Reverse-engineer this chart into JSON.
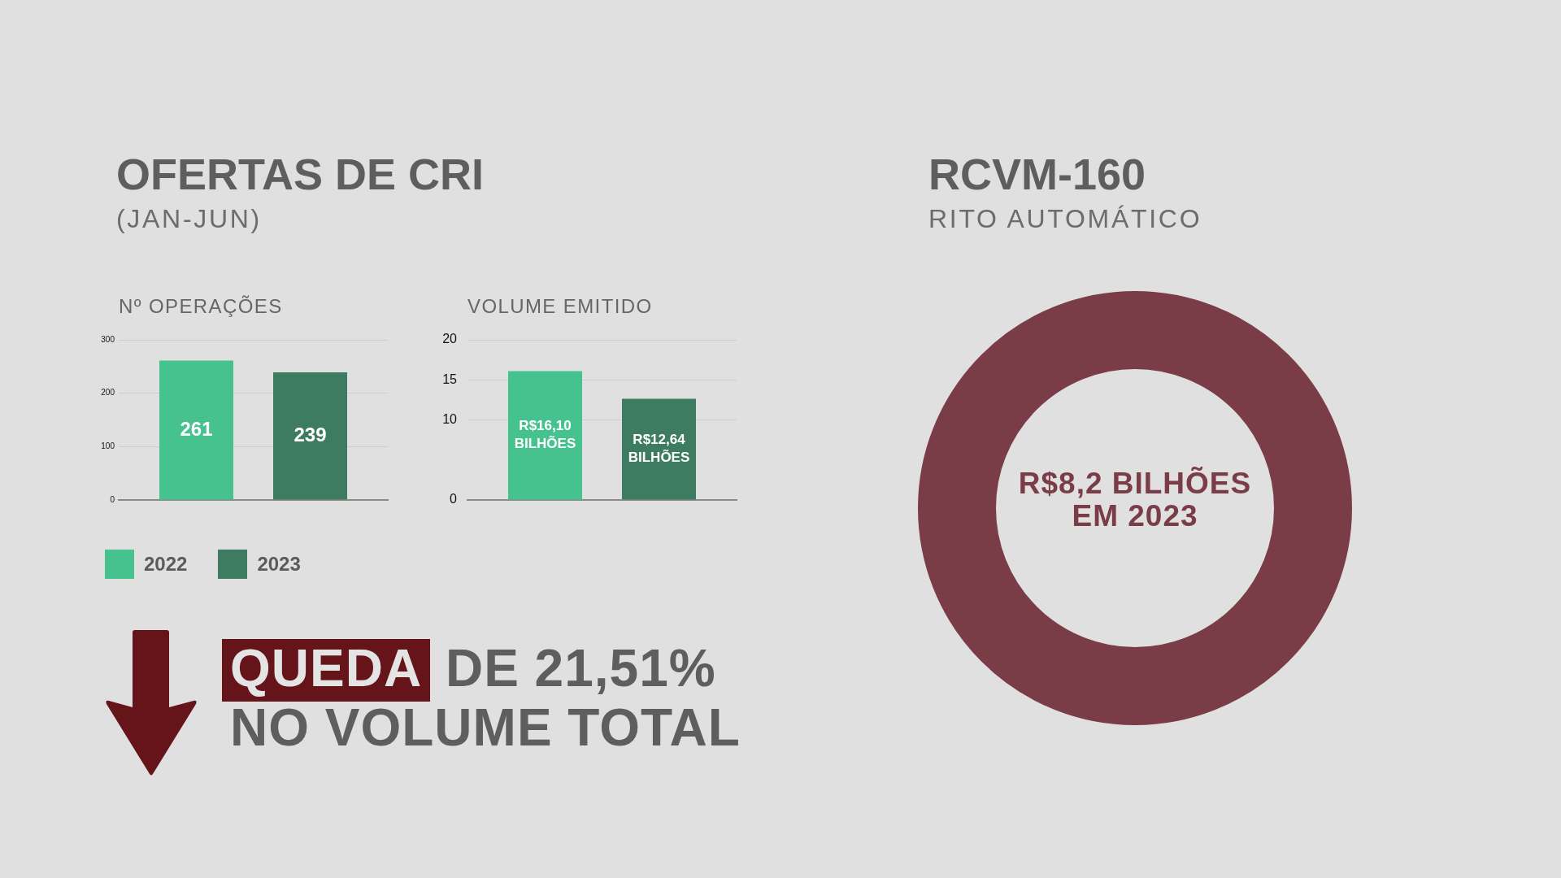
{
  "chart_data": [
    {
      "type": "other",
      "title": "OFERTAS DE CRI",
      "subtitle": "(JAN-JUN)"
    },
    {
      "type": "bar",
      "title": "Nº OPERAÇÕES",
      "categories": [
        null
      ],
      "series": [
        {
          "name": "2022",
          "color": "#45c28d",
          "values": [
            261
          ]
        },
        {
          "name": "2023",
          "color": "#3d7c61",
          "values": [
            239
          ]
        }
      ],
      "ylim": [
        0,
        300
      ],
      "yticks": [
        0,
        100,
        200,
        300
      ],
      "grid": "y",
      "legend": "bottom left",
      "data_labels": true
    },
    {
      "type": "bar",
      "title": "VOLUME EMITIDO",
      "categories": [
        null
      ],
      "series": [
        {
          "color": "#45c28d",
          "values": [
            16.1
          ],
          "value_labels": [
            "R$16,10 BILHÕES"
          ]
        },
        {
          "color": "#3d7c61",
          "values": [
            12.64
          ],
          "value_labels": [
            "R$12,64 BILHÕES"
          ]
        }
      ],
      "ylim": [
        0,
        20
      ],
      "yticks": [
        0,
        10,
        15,
        20
      ],
      "grid": "y"
    },
    {
      "type": "other",
      "annotations": [
        "QUEDA DE 21,51% NO VOLUME TOTAL"
      ]
    },
    {
      "type": "other",
      "title": "RCVM-160",
      "subtitle": "RITO AUTOMÁTICO",
      "annotations": [
        "R$8,2 BILHÕES EM 2023"
      ]
    }
  ]
}
